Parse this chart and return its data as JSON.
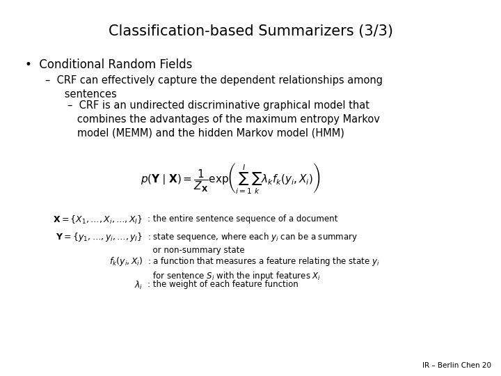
{
  "title": "Classification-based Summarizers (3/3)",
  "background_color": "#ffffff",
  "text_color": "#000000",
  "footer": "IR – Berlin Chen 20",
  "title_fontsize": 15,
  "bullet_fontsize": 12,
  "sub1_fontsize": 10.5,
  "sub2_fontsize": 10.5,
  "formula_fontsize": 11,
  "def_lhs_fontsize": 9,
  "def_rhs_fontsize": 8.5,
  "footer_fontsize": 7.5
}
